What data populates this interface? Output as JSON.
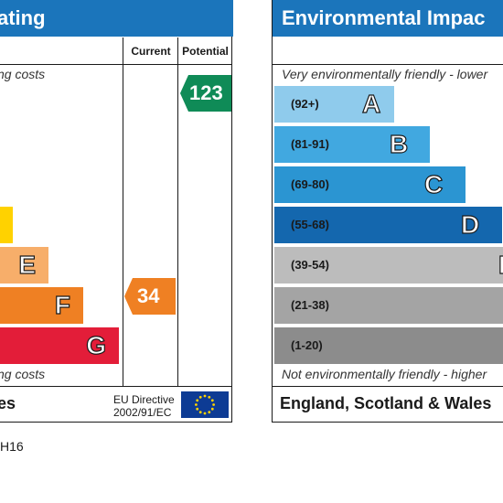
{
  "energy_panel": {
    "title": "ating",
    "columns": {
      "current": "Current",
      "potential": "Potential"
    },
    "top_note": "ng costs",
    "bottom_note": "ng costs",
    "bands": [
      {
        "letter": "",
        "color": "#ffd200"
      },
      {
        "letter": "E",
        "color": "#f7ae6a"
      },
      {
        "letter": "F",
        "color": "#ef8023"
      },
      {
        "letter": "G",
        "color": "#e31d39"
      }
    ],
    "current_rating": {
      "value": "34",
      "color": "#ef8023"
    },
    "potential_rating": {
      "value": "123",
      "color": "#0f8b57"
    },
    "footer": {
      "label": "es",
      "directive_line1": "EU Directive",
      "directive_line2": "2002/91/EC"
    }
  },
  "environment_panel": {
    "title": "Environmental Impac",
    "top_note": "Very environmentally friendly - lower",
    "bottom_note": "Not environmentally friendly - higher",
    "bands": [
      {
        "range": "(92+)",
        "letter": "A",
        "color": "#8fcbec"
      },
      {
        "range": "(81-91)",
        "letter": "B",
        "color": "#41a8e0"
      },
      {
        "range": "(69-80)",
        "letter": "C",
        "color": "#2b95d2"
      },
      {
        "range": "(55-68)",
        "letter": "D",
        "color": "#1467ae"
      },
      {
        "range": "(39-54)",
        "letter": "E",
        "color": "#bcbcbc"
      },
      {
        "range": "(21-38)",
        "letter": "",
        "color": "#a4a4a4"
      },
      {
        "range": "(1-20)",
        "letter": "",
        "color": "#8c8c8c"
      }
    ],
    "footer": {
      "label": "England, Scotland & Wales"
    }
  },
  "caption": "H16"
}
